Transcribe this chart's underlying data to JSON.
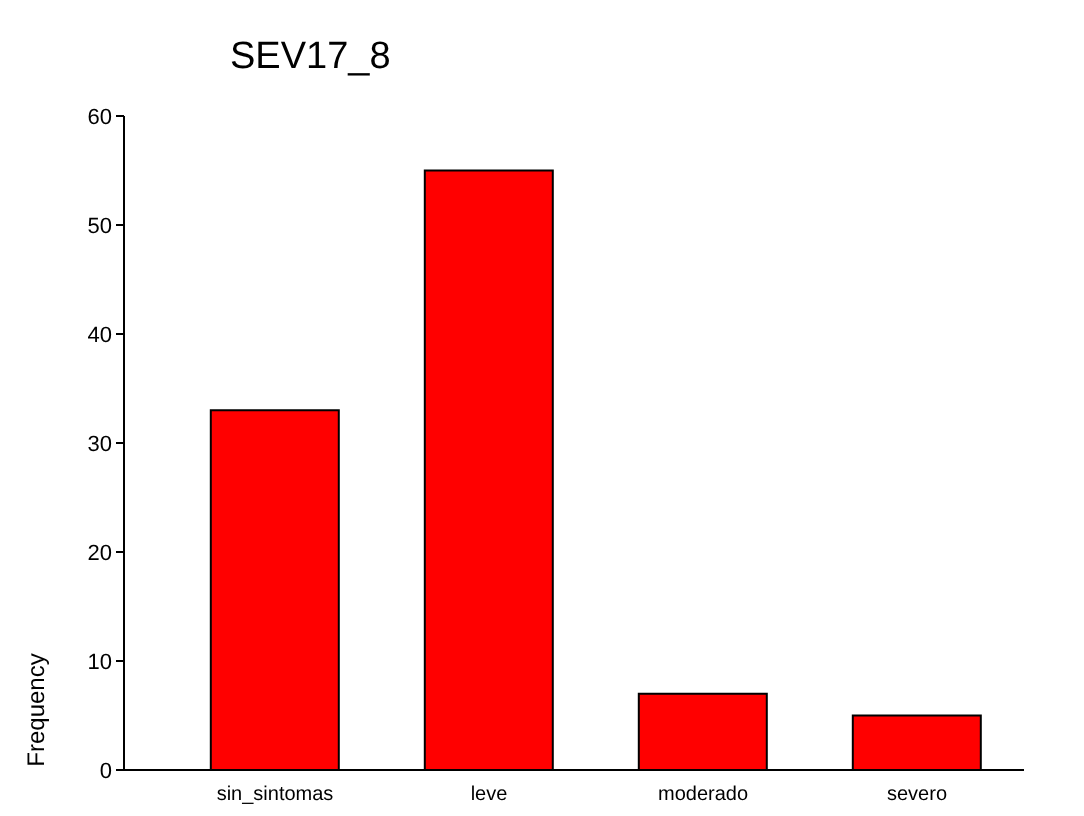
{
  "chart_data": {
    "type": "bar",
    "title": "SEV17_8",
    "ylabel": "Frequency",
    "categories": [
      "sin_sintomas",
      "leve",
      "moderado",
      "severo"
    ],
    "values": [
      33,
      55,
      7,
      5
    ],
    "color": "#ff0000",
    "ylim": [
      0,
      60
    ],
    "yticks": [
      0,
      10,
      20,
      30,
      40,
      50,
      60
    ],
    "grid": false,
    "legend": false
  }
}
